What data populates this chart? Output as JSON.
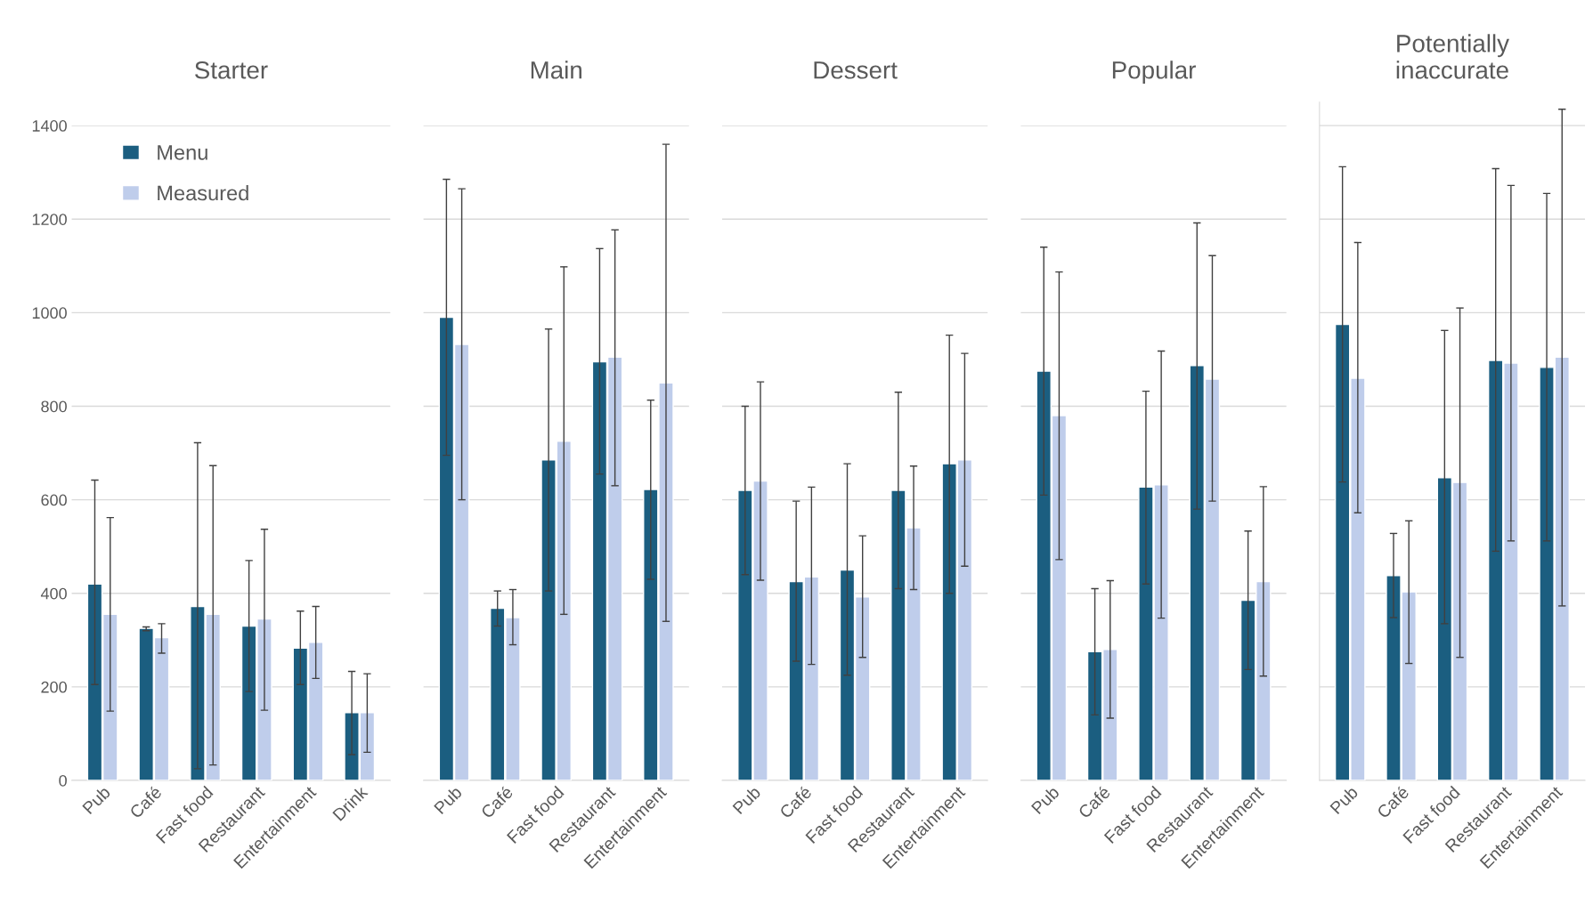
{
  "chart_data": [
    {
      "type": "bar",
      "title": "Starter",
      "categories": [
        "Pub",
        "Café",
        "Fast food",
        "Restaurant",
        "Entertainment",
        "Drink"
      ],
      "ylim": [
        0,
        1400
      ],
      "yticks": [
        0,
        200,
        400,
        600,
        800,
        1000,
        1200,
        1400
      ],
      "grid": "y",
      "legend": "top left",
      "series": [
        {
          "name": "Menu",
          "color": "#1b5e80",
          "values": [
            420,
            325,
            372,
            330,
            283,
            145
          ],
          "errors": [
            [
              205,
              642
            ],
            [
              320,
              328
            ],
            [
              25,
              722
            ],
            [
              190,
              470
            ],
            [
              205,
              362
            ],
            [
              55,
              233
            ]
          ]
        },
        {
          "name": "Measured",
          "color": "#bfcdeb",
          "values": [
            355,
            305,
            355,
            345,
            295,
            145
          ],
          "errors": [
            [
              148,
              562
            ],
            [
              272,
              335
            ],
            [
              33,
              673
            ],
            [
              150,
              537
            ],
            [
              218,
              372
            ],
            [
              60,
              228
            ]
          ]
        }
      ]
    },
    {
      "type": "bar",
      "title": "Main",
      "categories": [
        "Pub",
        "Café",
        "Fast food",
        "Restaurant",
        "Entertainment"
      ],
      "ylim": [
        0,
        1400
      ],
      "yticks": [
        0,
        200,
        400,
        600,
        800,
        1000,
        1200,
        1400
      ],
      "grid": "y",
      "tick_labels": "x",
      "series": [
        {
          "color": "#1b5e80",
          "values": [
            990,
            368,
            685,
            895,
            622
          ],
          "errors": [
            [
              695,
              1285
            ],
            [
              330,
              405
            ],
            [
              405,
              965
            ],
            [
              655,
              1137
            ],
            [
              430,
              813
            ]
          ]
        },
        {
          "color": "#bfcdeb",
          "values": [
            932,
            348,
            725,
            905,
            850
          ],
          "errors": [
            [
              600,
              1265
            ],
            [
              290,
              408
            ],
            [
              355,
              1098
            ],
            [
              630,
              1177
            ],
            [
              340,
              1360
            ]
          ]
        }
      ]
    },
    {
      "type": "bar",
      "title": "Dessert",
      "categories": [
        "Pub",
        "Café",
        "Fast food",
        "Restaurant",
        "Entertainment"
      ],
      "ylim": [
        0,
        1400
      ],
      "yticks": [
        0,
        200,
        400,
        600,
        800,
        1000,
        1200,
        1400
      ],
      "grid": "y",
      "tick_labels": "x",
      "series": [
        {
          "color": "#1b5e80",
          "values": [
            620,
            425,
            450,
            620,
            677
          ],
          "errors": [
            [
              440,
              800
            ],
            [
              255,
              597
            ],
            [
              225,
              677
            ],
            [
              410,
              830
            ],
            [
              400,
              952
            ]
          ]
        },
        {
          "color": "#bfcdeb",
          "values": [
            640,
            435,
            392,
            540,
            685
          ],
          "errors": [
            [
              428,
              852
            ],
            [
              248,
              627
            ],
            [
              263,
              523
            ],
            [
              408,
              672
            ],
            [
              458,
              913
            ]
          ]
        }
      ]
    },
    {
      "type": "bar",
      "title": "Popular",
      "categories": [
        "Pub",
        "Café",
        "Fast food",
        "Restaurant",
        "Entertainment"
      ],
      "ylim": [
        0,
        1400
      ],
      "yticks": [
        0,
        200,
        400,
        600,
        800,
        1000,
        1200,
        1400
      ],
      "grid": "y",
      "tick_labels": "x",
      "series": [
        {
          "color": "#1b5e80",
          "values": [
            875,
            275,
            627,
            887,
            385
          ],
          "errors": [
            [
              610,
              1140
            ],
            [
              140,
              410
            ],
            [
              420,
              832
            ],
            [
              580,
              1192
            ],
            [
              237,
              533
            ]
          ]
        },
        {
          "color": "#bfcdeb",
          "values": [
            780,
            280,
            632,
            858,
            425
          ],
          "errors": [
            [
              472,
              1087
            ],
            [
              133,
              427
            ],
            [
              347,
              918
            ],
            [
              597,
              1122
            ],
            [
              223,
              628
            ]
          ]
        }
      ]
    },
    {
      "type": "bar",
      "title": "Potentially\ninaccurate",
      "categories": [
        "Pub",
        "Café",
        "Fast food",
        "Restaurant",
        "Entertainment"
      ],
      "ylim": [
        0,
        1450
      ],
      "yticks": [
        0,
        200,
        400,
        600,
        800,
        1000,
        1200,
        1400
      ],
      "grid": "y",
      "tick_labels": "x",
      "series": [
        {
          "color": "#1b5e80",
          "values": [
            975,
            438,
            647,
            898,
            883
          ],
          "errors": [
            [
              638,
              1312
            ],
            [
              348,
              528
            ],
            [
              335,
              962
            ],
            [
              490,
              1308
            ],
            [
              512,
              1255
            ]
          ]
        },
        {
          "color": "#bfcdeb",
          "values": [
            860,
            403,
            637,
            892,
            905
          ],
          "errors": [
            [
              572,
              1150
            ],
            [
              250,
              555
            ],
            [
              263,
              1010
            ],
            [
              512,
              1272
            ],
            [
              373,
              1435
            ]
          ]
        }
      ]
    }
  ]
}
